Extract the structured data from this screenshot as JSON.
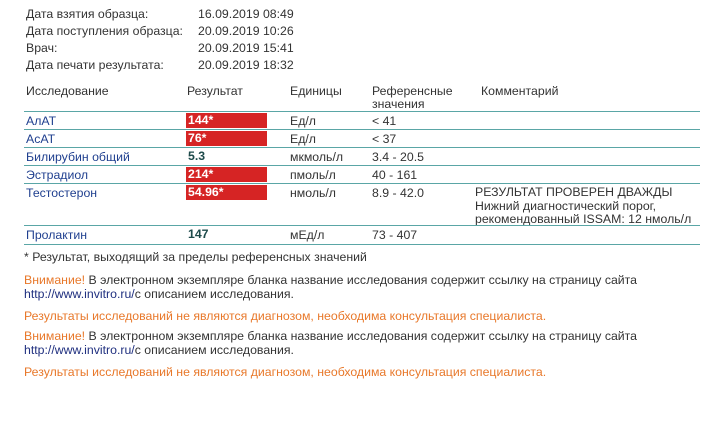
{
  "meta": [
    {
      "label": "Дата взятия образца:",
      "value": "16.09.2019 08:49"
    },
    {
      "label": "Дата поступления образца:",
      "value": "20.09.2019 10:26"
    },
    {
      "label": "Врач:",
      "value": "20.09.2019 15:41"
    },
    {
      "label": "Дата печати результата:",
      "value": "20.09.2019 18:32"
    }
  ],
  "table": {
    "headers": {
      "test": "Исследование",
      "result": "Результат",
      "units": "Единицы",
      "ref_line1": "Референсные",
      "ref_line2": "значения",
      "comment": "Комментарий"
    },
    "rows": [
      {
        "test": "АлАТ",
        "result": "144*",
        "units": "Ед/л",
        "ref": "< 41",
        "comment": ""
      },
      {
        "test": "АсАТ",
        "result": "76*",
        "units": "Ед/л",
        "ref": "< 37",
        "comment": ""
      },
      {
        "test": "Билирубин общий",
        "result": "5.3",
        "units": "мкмоль/л",
        "ref": "3.4 - 20.5",
        "comment": ""
      },
      {
        "test": "Эстрадиол",
        "result": "214*",
        "units": "пмоль/л",
        "ref": "40 - 161",
        "comment": ""
      },
      {
        "test": "Тестостерон",
        "result": "54.96*",
        "units": "нмоль/л",
        "ref": "8.9 - 42.0",
        "comment_lines": [
          "РЕЗУЛЬТАТ ПРОВЕРЕН ДВАЖДЫ",
          "Нижний диагностический порог,",
          "рекомендованный ISSAM: 12 нмоль/л"
        ]
      },
      {
        "test": "Пролактин",
        "result": "147",
        "units": "мЕд/л",
        "ref": "73 - 407",
        "comment": ""
      }
    ]
  },
  "footnote": "* Результат, выходящий за пределы референсных значений",
  "notices": {
    "attention": "Внимание!",
    "text": " В электронном экземпляре бланка название исследования содержит ссылку на страницу сайта",
    "url": "http://www.invitro.ru/",
    "text2": "с описанием исследования.",
    "disclaimer": "Результаты исследований не являются диагнозом, необходима консультация специалиста."
  },
  "colors": {
    "out_of_range": "#d62424",
    "attention": "#e8782a",
    "divider": "#5aa6a6"
  }
}
